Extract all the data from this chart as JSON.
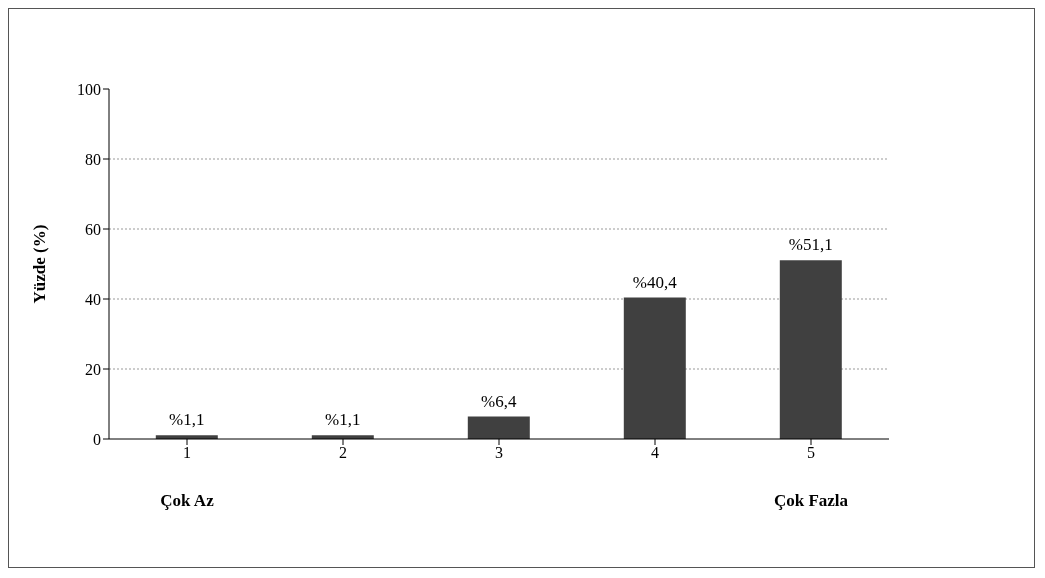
{
  "chart_data": {
    "type": "bar",
    "ylabel": "Yüzde (%)",
    "categories": [
      "1",
      "2",
      "3",
      "4",
      "5"
    ],
    "values": [
      1.1,
      1.1,
      6.4,
      40.4,
      51.1
    ],
    "value_labels": [
      "%1,1",
      "%1,1",
      "%6,4",
      "%40,4",
      "%51,1"
    ],
    "color": "#404040",
    "ylim": [
      0,
      100
    ],
    "yticks": [
      0,
      20,
      40,
      60,
      80,
      100
    ],
    "grid": "y",
    "annotations": [
      "Çok Az",
      "Çok Fazla"
    ]
  }
}
